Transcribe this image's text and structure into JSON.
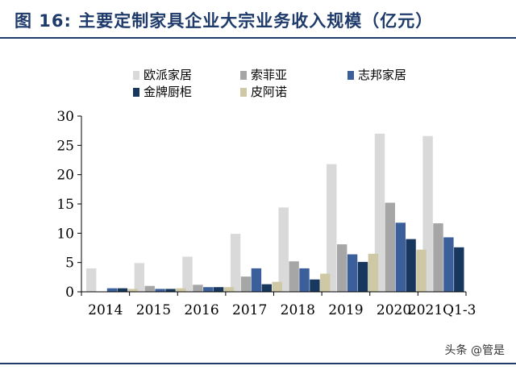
{
  "title": "图 16:  主要定制家具企业大宗业务收入规模（亿元）",
  "watermark": "头条 @管是",
  "colors": {
    "title": "#1f3b6b",
    "axis": "#000000"
  },
  "chart_data": {
    "type": "bar",
    "categories": [
      "2014",
      "2015",
      "2016",
      "2017",
      "2018",
      "2019",
      "2020",
      "2021Q1-3"
    ],
    "ylim": [
      0,
      30
    ],
    "yticks": [
      "0",
      "5",
      "10",
      "15",
      "20",
      "25",
      "30"
    ],
    "legend_position": "top",
    "grid": false,
    "series": [
      {
        "name": "欧派家居",
        "color": "#d9d9d9",
        "values": [
          4.0,
          4.9,
          6.0,
          9.9,
          14.4,
          21.8,
          27.0,
          26.6
        ]
      },
      {
        "name": "索菲亚",
        "color": "#a6a6a6",
        "values": [
          null,
          1.0,
          1.2,
          2.6,
          5.2,
          8.1,
          15.2,
          11.7
        ]
      },
      {
        "name": "志邦家居",
        "color": "#3b5f9a",
        "values": [
          0.6,
          0.5,
          0.8,
          4.0,
          4.0,
          6.4,
          11.8,
          9.3
        ]
      },
      {
        "name": "金牌厨柜",
        "color": "#17375e",
        "values": [
          0.6,
          0.5,
          0.8,
          1.3,
          2.1,
          5.1,
          9.0,
          7.6
        ]
      },
      {
        "name": "皮阿诺",
        "color": "#cfc8a4",
        "values": [
          0.5,
          0.6,
          0.8,
          1.7,
          3.1,
          6.5,
          7.2,
          null
        ]
      }
    ]
  }
}
